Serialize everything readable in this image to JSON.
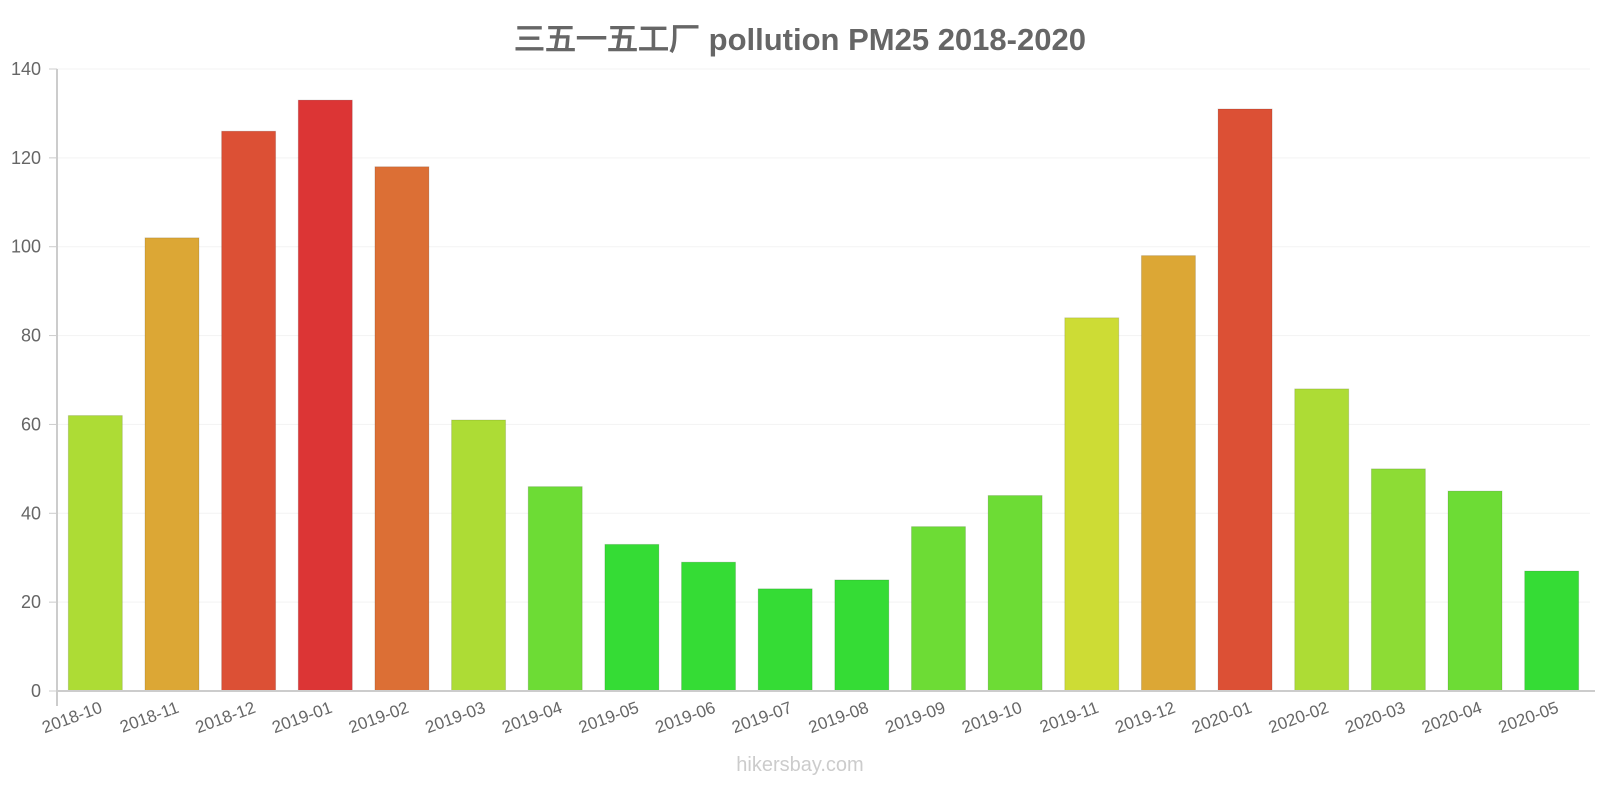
{
  "title": "三五一五工厂 pollution PM25 2018-2020",
  "watermark": "hikersbay.com",
  "chart_data": {
    "type": "bar",
    "title": "三五一五工厂 pollution PM25 2018-2020",
    "xlabel": "",
    "ylabel": "",
    "ylim": [
      0,
      140
    ],
    "yticks": [
      0,
      20,
      40,
      60,
      80,
      100,
      120,
      140
    ],
    "grid": true,
    "legend": null,
    "categories": [
      "2018-10",
      "2018-11",
      "2018-12",
      "2019-01",
      "2019-02",
      "2019-03",
      "2019-04",
      "2019-05",
      "2019-06",
      "2019-07",
      "2019-08",
      "2019-09",
      "2019-10",
      "2019-11",
      "2019-12",
      "2020-01",
      "2020-02",
      "2020-03",
      "2020-04",
      "2020-05"
    ],
    "values": [
      62,
      102,
      126,
      133,
      118,
      61,
      46,
      33,
      29,
      23,
      25,
      37,
      44,
      84,
      98,
      131,
      68,
      50,
      45,
      27
    ],
    "colors": [
      "#addc35",
      "#dca735",
      "#dc5035",
      "#dc3535",
      "#dc6f35",
      "#addc35",
      "#6ddc35",
      "#35dc35",
      "#35dc35",
      "#35dc35",
      "#35dc35",
      "#6ddc35",
      "#6ddc35",
      "#cddc35",
      "#dca735",
      "#dc5035",
      "#addc35",
      "#8ddc35",
      "#6ddc35",
      "#35dc35"
    ]
  }
}
